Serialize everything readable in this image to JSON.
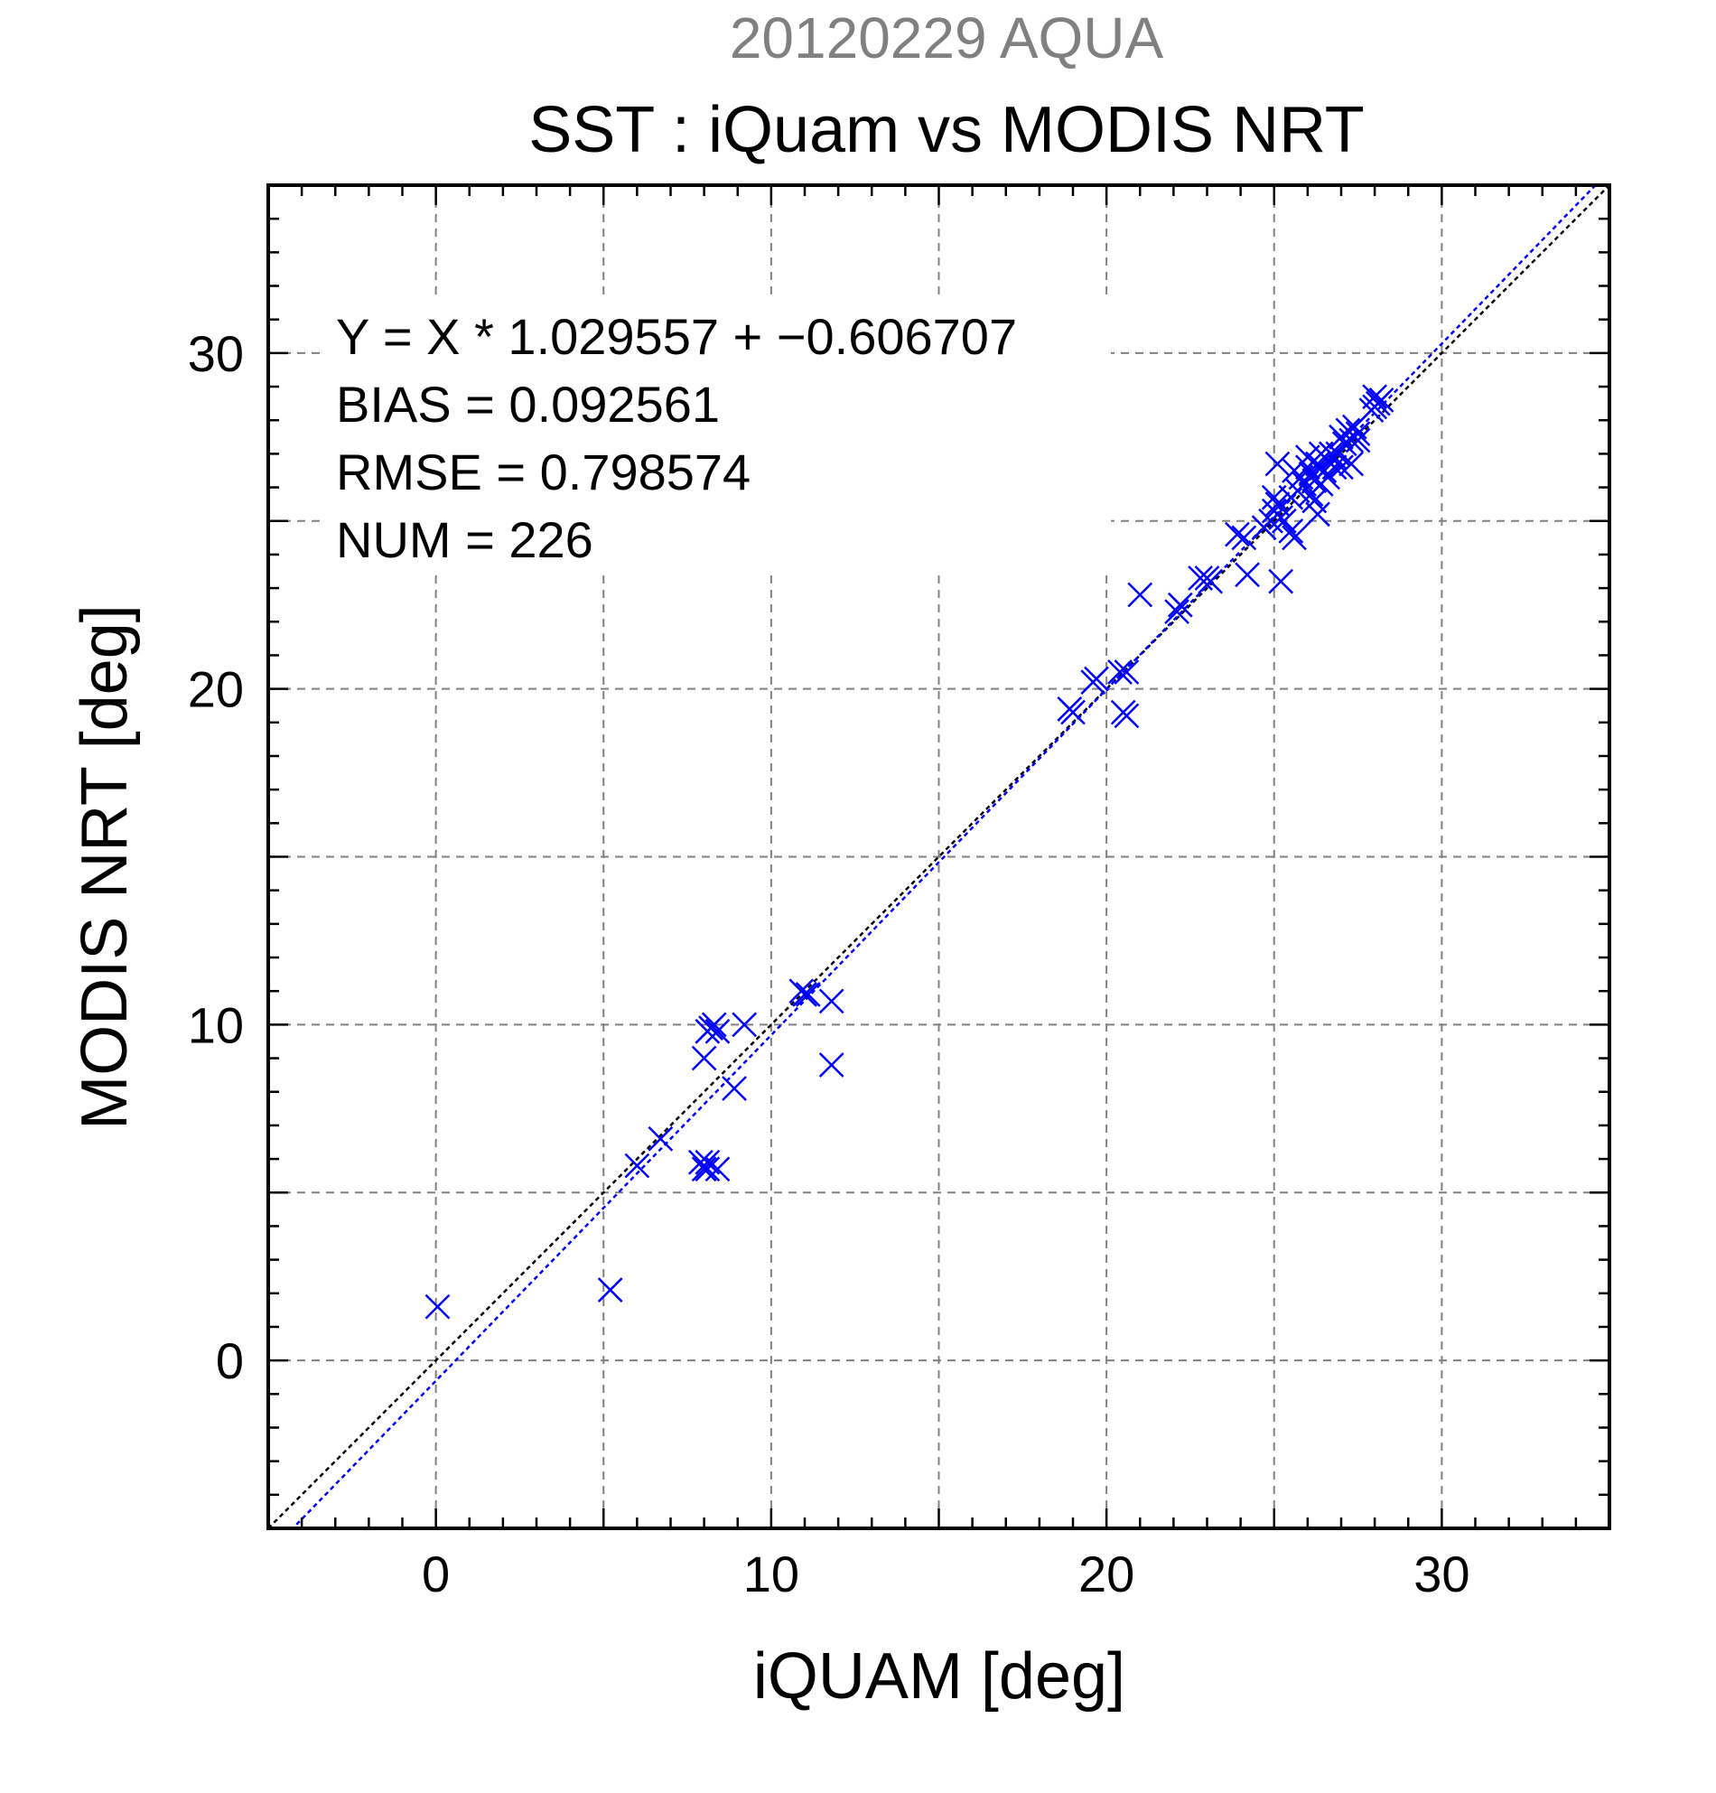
{
  "chart_data": {
    "type": "scatter",
    "header": "20120229 AQUA",
    "title": "SST : iQuam vs MODIS NRT",
    "xlabel": "iQUAM [deg]",
    "ylabel": "MODIS NRT [deg]",
    "xlim": [
      -5,
      35
    ],
    "ylim": [
      -5,
      35
    ],
    "xticks": [
      0,
      10,
      20,
      30
    ],
    "yticks": [
      0,
      10,
      20,
      30
    ],
    "xtick_labels": [
      "0",
      "10",
      "20",
      "30"
    ],
    "ytick_labels": [
      "0",
      "10",
      "20",
      "30"
    ],
    "grid_step": 5,
    "minor_tick_step": 1,
    "grid": true,
    "stats": {
      "equation": "Y = X * 1.029557 + −0.606707",
      "bias": "BIAS = 0.092561",
      "rmse": "RMSE = 0.798574",
      "num": "NUM = 226"
    },
    "reference_line": {
      "slope": 1,
      "intercept": 0,
      "color": "#000000"
    },
    "fit_line": {
      "slope": 1.029557,
      "intercept": -0.606707,
      "color": "#0000ff"
    },
    "series": [
      {
        "color": "#0000ff",
        "marker": "x",
        "points": [
          [
            0.05,
            1.6
          ],
          [
            5.2,
            2.1
          ],
          [
            6.0,
            5.8
          ],
          [
            6.7,
            6.6
          ],
          [
            7.9,
            5.9
          ],
          [
            8.0,
            5.7
          ],
          [
            8.1,
            5.7
          ],
          [
            8.1,
            5.9
          ],
          [
            8.4,
            5.7
          ],
          [
            8.9,
            8.1
          ],
          [
            8.0,
            9.0
          ],
          [
            8.1,
            9.8
          ],
          [
            8.2,
            9.9
          ],
          [
            8.3,
            10.0
          ],
          [
            8.4,
            9.8
          ],
          [
            9.2,
            10.0
          ],
          [
            10.9,
            11.0
          ],
          [
            11.0,
            10.9
          ],
          [
            11.1,
            10.9
          ],
          [
            11.8,
            10.7
          ],
          [
            11.8,
            8.8
          ],
          [
            19.0,
            19.3
          ],
          [
            18.9,
            19.4
          ],
          [
            19.6,
            20.2
          ],
          [
            19.7,
            20.3
          ],
          [
            20.4,
            20.5
          ],
          [
            20.6,
            20.5
          ],
          [
            20.5,
            19.3
          ],
          [
            20.6,
            19.2
          ],
          [
            21.0,
            22.8
          ],
          [
            22.1,
            22.3
          ],
          [
            22.2,
            22.5
          ],
          [
            22.8,
            23.3
          ],
          [
            23.0,
            23.3
          ],
          [
            23.1,
            23.2
          ],
          [
            23.9,
            24.6
          ],
          [
            24.1,
            24.5
          ],
          [
            24.2,
            23.4
          ],
          [
            24.7,
            24.8
          ],
          [
            24.9,
            25.0
          ],
          [
            25.0,
            25.3
          ],
          [
            25.1,
            25.5
          ],
          [
            25.0,
            25.7
          ],
          [
            25.2,
            25.1
          ],
          [
            25.3,
            25.0
          ],
          [
            25.1,
            26.7
          ],
          [
            25.2,
            23.2
          ],
          [
            25.5,
            24.7
          ],
          [
            25.6,
            24.5
          ],
          [
            25.5,
            25.7
          ],
          [
            25.6,
            26.5
          ],
          [
            25.7,
            25.9
          ],
          [
            25.8,
            26.3
          ],
          [
            25.9,
            26.1
          ],
          [
            26.0,
            26.6
          ],
          [
            26.0,
            26.9
          ],
          [
            26.1,
            26.4
          ],
          [
            26.1,
            25.8
          ],
          [
            26.2,
            26.2
          ],
          [
            26.2,
            25.6
          ],
          [
            26.3,
            26.7
          ],
          [
            26.3,
            25.2
          ],
          [
            26.4,
            26.1
          ],
          [
            26.4,
            27.0
          ],
          [
            26.5,
            26.5
          ],
          [
            26.6,
            26.8
          ],
          [
            26.6,
            26.3
          ],
          [
            26.7,
            27.0
          ],
          [
            26.8,
            26.6
          ],
          [
            26.8,
            26.9
          ],
          [
            26.9,
            27.0
          ],
          [
            27.0,
            26.6
          ],
          [
            27.0,
            27.5
          ],
          [
            27.1,
            27.3
          ],
          [
            27.2,
            27.7
          ],
          [
            27.3,
            27.4
          ],
          [
            27.3,
            26.7
          ],
          [
            27.4,
            27.8
          ],
          [
            27.5,
            27.4
          ],
          [
            27.5,
            27.6
          ],
          [
            27.9,
            28.3
          ],
          [
            28.0,
            28.4
          ],
          [
            28.0,
            28.7
          ],
          [
            28.1,
            28.5
          ],
          [
            28.2,
            28.6
          ]
        ]
      }
    ]
  }
}
